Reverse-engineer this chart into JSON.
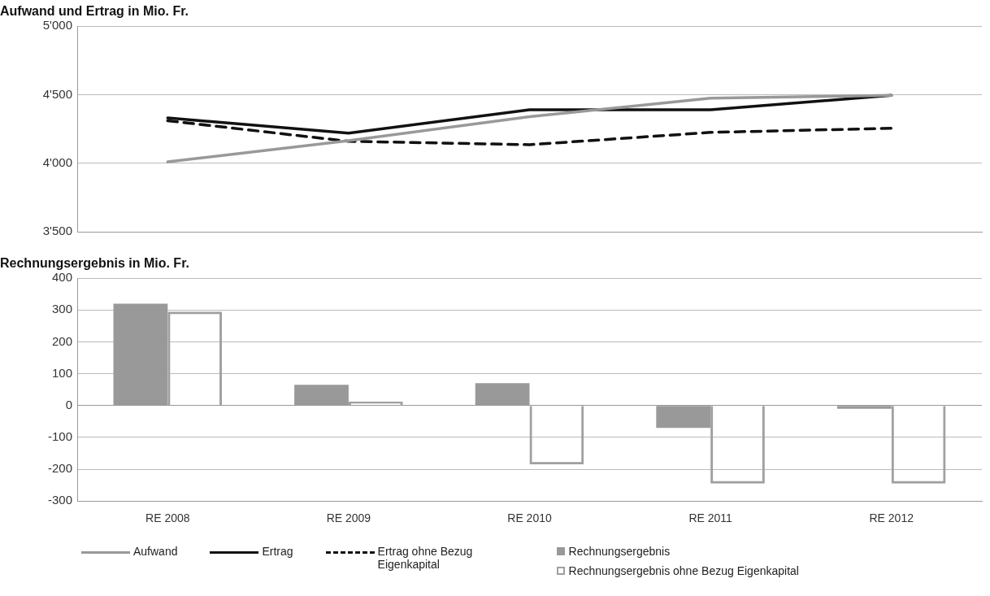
{
  "chart_data": [
    {
      "type": "line",
      "title": "Aufwand und Ertrag in Mio. Fr.",
      "categories": [
        null,
        null,
        null,
        null,
        null
      ],
      "series": [
        {
          "name": "Aufwand",
          "color": "#999999",
          "values": [
            4010,
            4165,
            4340,
            4475,
            4495
          ]
        },
        {
          "name": "Ertrag",
          "color": "#111111",
          "values": [
            4330,
            4220,
            4390,
            4390,
            4495
          ]
        },
        {
          "name": "Ertrag ohne Bezug Eigenkapital",
          "color": "#111111",
          "line_style": "dashed",
          "values": [
            4310,
            4160,
            4135,
            4225,
            4255
          ]
        }
      ],
      "ylim": [
        3500,
        5000
      ],
      "yticks": [
        {
          "value": 3500,
          "label": "3'500"
        },
        {
          "value": 4000,
          "label": "4'000"
        },
        {
          "value": 4500,
          "label": "4'500"
        },
        {
          "value": 5000,
          "label": "5'000"
        }
      ],
      "grid": "y",
      "marker": "none",
      "tick_labels": "y",
      "legend": "bottom"
    },
    {
      "type": "bar",
      "title": "Rechnungsergebnis in Mio. Fr.",
      "categories": [
        "RE 2008",
        "RE 2009",
        "RE 2010",
        "RE 2011",
        "RE 2012"
      ],
      "series": [
        {
          "name": "Rechnungsergebnis",
          "color": "#999999",
          "values": [
            320,
            65,
            70,
            -70,
            -10
          ]
        },
        {
          "name": "Rechnungsergebnis ohne Bezug Eigenkapital",
          "color": "#a0a0a0",
          "values": [
            295,
            12,
            -185,
            -245,
            -245
          ]
        }
      ],
      "ylim": [
        -300,
        400
      ],
      "yticks": [
        -300,
        -200,
        -100,
        0,
        100,
        200,
        300,
        400
      ],
      "grid": "y",
      "legend": "bottom"
    }
  ]
}
